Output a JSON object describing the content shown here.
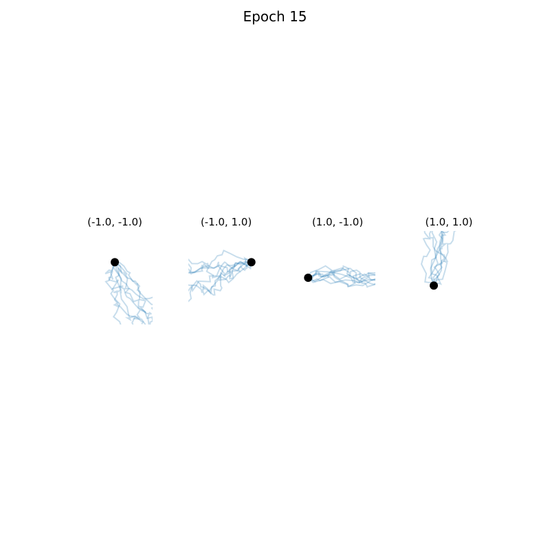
{
  "figure": {
    "title": "Epoch 15"
  },
  "colors": {
    "trajectory": "#1f77b4",
    "start_marker": "#000000"
  },
  "chart_data": [
    {
      "type": "line",
      "title": "(-1.0, -1.0)",
      "start": [
        -1.0,
        -1.0
      ],
      "xlim": [
        -1.5,
        -0.5
      ],
      "ylim": [
        -1.8,
        -0.6
      ],
      "trajectory_count": 8,
      "grid": false,
      "axes_visible": false
    },
    {
      "type": "line",
      "title": "(-1.0, 1.0)",
      "start": [
        -1.0,
        1.0
      ],
      "xlim": [
        -2.0,
        -0.8
      ],
      "ylim": [
        0.2,
        1.4
      ],
      "trajectory_count": 8,
      "grid": false,
      "axes_visible": false
    },
    {
      "type": "line",
      "title": "(1.0, -1.0)",
      "start": [
        1.0,
        -1.0
      ],
      "xlim": [
        0.9,
        1.8
      ],
      "ylim": [
        -1.6,
        -0.4
      ],
      "trajectory_count": 8,
      "grid": false,
      "axes_visible": false
    },
    {
      "type": "line",
      "title": "(1.0, 1.0)",
      "start": [
        1.0,
        1.0
      ],
      "xlim": [
        0.7,
        1.7
      ],
      "ylim": [
        0.5,
        1.7
      ],
      "trajectory_count": 8,
      "grid": false,
      "axes_visible": false
    }
  ]
}
